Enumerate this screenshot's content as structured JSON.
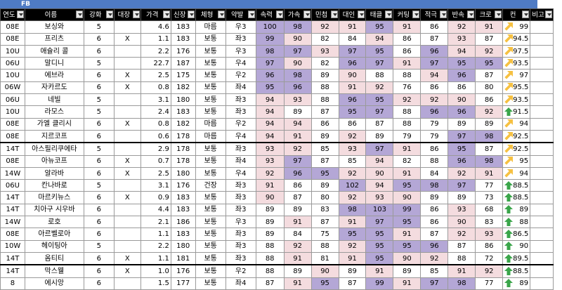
{
  "sheet_title": "FB",
  "columns": [
    "연도",
    "이름",
    "강화",
    "대장",
    "가격",
    "신장",
    "체형",
    "약발",
    "속력",
    "가속",
    "민첩",
    "대인",
    "태클",
    "커팅",
    "적극",
    "반속",
    "크로",
    "컨",
    "비고"
  ],
  "rows": [
    {
      "year": "08E",
      "name": "보싱와",
      "enh": "5",
      "cap": "",
      "price": "4.6",
      "height": "183",
      "body": "마름",
      "foot": "우3",
      "s": [
        "100",
        "98",
        "92",
        "91",
        "95",
        "91",
        "86",
        "92",
        "91"
      ],
      "trend": "up-diag",
      "con": "99",
      "note": ""
    },
    {
      "year": "08E",
      "name": "프리츠",
      "enh": "6",
      "cap": "X",
      "price": "1.1",
      "height": "183",
      "body": "보통",
      "foot": "좌3",
      "s": [
        "99",
        "90",
        "82",
        "84",
        "94",
        "86",
        "87",
        "93",
        "87"
      ],
      "trend": "up-diag",
      "con": "94.5",
      "note": ""
    },
    {
      "year": "10U",
      "name": "애슐리 콜",
      "enh": "6",
      "cap": "",
      "price": "2.2",
      "height": "176",
      "body": "보통",
      "foot": "우3",
      "s": [
        "98",
        "97",
        "93",
        "97",
        "95",
        "86",
        "96",
        "94",
        "92"
      ],
      "trend": "up-diag",
      "con": "97.5",
      "note": ""
    },
    {
      "year": "06U",
      "name": "말디니",
      "enh": "5",
      "cap": "",
      "price": "22.7",
      "height": "187",
      "body": "보통",
      "foot": "우4",
      "s": [
        "97",
        "90",
        "82",
        "96",
        "97",
        "91",
        "97",
        "95",
        "95"
      ],
      "trend": "up-diag",
      "con": "93.5",
      "note": ""
    },
    {
      "year": "10U",
      "name": "에브라",
      "enh": "6",
      "cap": "X",
      "price": "2.5",
      "height": "175",
      "body": "보통",
      "foot": "우2",
      "s": [
        "96",
        "98",
        "89",
        "90",
        "88",
        "88",
        "94",
        "96",
        "87"
      ],
      "trend": "up-diag",
      "con": "97",
      "note": ""
    },
    {
      "year": "06W",
      "name": "자카르도",
      "enh": "6",
      "cap": "X",
      "price": "0.8",
      "height": "182",
      "body": "보통",
      "foot": "좌4",
      "s": [
        "95",
        "96",
        "88",
        "91",
        "92",
        "76",
        "86",
        "86",
        "80"
      ],
      "trend": "up-diag",
      "con": "95.5",
      "note": ""
    },
    {
      "year": "06U",
      "name": "네빌",
      "enh": "5",
      "cap": "",
      "price": "3.1",
      "height": "180",
      "body": "보통",
      "foot": "좌3",
      "s": [
        "94",
        "93",
        "88",
        "96",
        "95",
        "92",
        "92",
        "90",
        "86"
      ],
      "trend": "up-diag",
      "con": "93.5",
      "note": ""
    },
    {
      "year": "10U",
      "name": "라모스",
      "enh": "5",
      "cap": "",
      "price": "2.4",
      "height": "183",
      "body": "보통",
      "foot": "좌3",
      "s": [
        "94",
        "89",
        "87",
        "95",
        "97",
        "88",
        "96",
        "96",
        "92"
      ],
      "trend": "up",
      "con": "91.5",
      "note": ""
    },
    {
      "year": "08E",
      "name": "가엘 클리시",
      "enh": "6",
      "cap": "X",
      "price": "0.8",
      "height": "182",
      "body": "마름",
      "foot": "우2",
      "s": [
        "94",
        "94",
        "86",
        "86",
        "87",
        "88",
        "79",
        "89",
        "89"
      ],
      "trend": "up-diag",
      "con": "94",
      "note": ""
    },
    {
      "year": "08E",
      "name": "지르코프",
      "enh": "6",
      "cap": "",
      "price": "0.6",
      "height": "178",
      "body": "마름",
      "foot": "우4",
      "s": [
        "94",
        "91",
        "89",
        "92",
        "89",
        "79",
        "79",
        "97",
        "98"
      ],
      "trend": "up-diag",
      "con": "92.5",
      "note": ""
    },
    {
      "year": "14T",
      "name": "아스필리쿠에타",
      "enh": "5",
      "cap": "",
      "price": "2.9",
      "height": "178",
      "body": "보통",
      "foot": "좌3",
      "s": [
        "93",
        "92",
        "85",
        "93",
        "97",
        "91",
        "86",
        "95",
        "87"
      ],
      "trend": "up-diag",
      "con": "92.5",
      "note": ""
    },
    {
      "year": "08E",
      "name": "아뉴코프",
      "enh": "6",
      "cap": "X",
      "price": "0.7",
      "height": "178",
      "body": "보통",
      "foot": "좌4",
      "s": [
        "93",
        "97",
        "87",
        "85",
        "94",
        "82",
        "88",
        "96",
        "98"
      ],
      "trend": "up-diag",
      "con": "95",
      "note": ""
    },
    {
      "year": "14W",
      "name": "알라바",
      "enh": "6",
      "cap": "X",
      "price": "2.5",
      "height": "180",
      "body": "보통",
      "foot": "우4",
      "s": [
        "92",
        "96",
        "95",
        "92",
        "90",
        "91",
        "84",
        "92",
        "91"
      ],
      "trend": "up-diag",
      "con": "94",
      "note": ""
    },
    {
      "year": "06U",
      "name": "칸나바로",
      "enh": "5",
      "cap": "",
      "price": "3.1",
      "height": "176",
      "body": "건장",
      "foot": "좌3",
      "s": [
        "91",
        "86",
        "89",
        "102",
        "94",
        "95",
        "98",
        "97",
        "77"
      ],
      "trend": "up",
      "con": "88.5",
      "note": ""
    },
    {
      "year": "14T",
      "name": "마르키뉴스",
      "enh": "6",
      "cap": "X",
      "price": "0.9",
      "height": "183",
      "body": "보통",
      "foot": "좌3",
      "s": [
        "90",
        "87",
        "80",
        "92",
        "93",
        "90",
        "89",
        "89",
        "73"
      ],
      "trend": "up",
      "con": "88.5",
      "note": ""
    },
    {
      "year": "14T",
      "name": "치아구 시우바",
      "enh": "6",
      "cap": "",
      "price": "4.4",
      "height": "183",
      "body": "보통",
      "foot": "좌3",
      "s": [
        "89",
        "89",
        "83",
        "98",
        "103",
        "99",
        "86",
        "93",
        "68"
      ],
      "trend": "up",
      "con": "89",
      "note": ""
    },
    {
      "year": "14W",
      "name": "로호",
      "enh": "6",
      "cap": "",
      "price": "2.1",
      "height": "186",
      "body": "보통",
      "foot": "우3",
      "s": [
        "89",
        "91",
        "87",
        "91",
        "97",
        "95",
        "86",
        "90",
        "83"
      ],
      "trend": "up",
      "con": "88",
      "note": ""
    },
    {
      "year": "08E",
      "name": "아르벨로아",
      "enh": "6",
      "cap": "",
      "price": "1.1",
      "height": "183",
      "body": "보통",
      "foot": "좌3",
      "s": [
        "89",
        "84",
        "75",
        "95",
        "95",
        "91",
        "87",
        "92",
        "93"
      ],
      "trend": "up",
      "con": "86.5",
      "note": ""
    },
    {
      "year": "10W",
      "name": "헤이팅아",
      "enh": "5",
      "cap": "",
      "price": "2.2",
      "height": "180",
      "body": "보통",
      "foot": "좌3",
      "s": [
        "88",
        "92",
        "88",
        "92",
        "95",
        "95",
        "96",
        "87",
        "86"
      ],
      "trend": "up",
      "con": "90",
      "note": ""
    },
    {
      "year": "14T",
      "name": "옴티티",
      "enh": "6",
      "cap": "X",
      "price": "1.1",
      "height": "181",
      "body": "보통",
      "foot": "좌3",
      "s": [
        "88",
        "91",
        "81",
        "91",
        "95",
        "90",
        "92",
        "88",
        "72"
      ],
      "trend": "up",
      "con": "89.5",
      "note": ""
    },
    {
      "year": "14T",
      "name": "막스웰",
      "enh": "6",
      "cap": "X",
      "price": "1.0",
      "height": "176",
      "body": "보통",
      "foot": "우2",
      "s": [
        "88",
        "89",
        "90",
        "89",
        "91",
        "89",
        "85",
        "91",
        "92"
      ],
      "trend": "up",
      "con": "88.5",
      "note": ""
    },
    {
      "year": "8",
      "name": "에시앙",
      "enh": "6",
      "cap": "",
      "price": "1.5",
      "height": "177",
      "body": "보통",
      "foot": "좌4",
      "s": [
        "87",
        "91",
        "95",
        "87",
        "99",
        "91",
        "97",
        "98",
        "77"
      ],
      "trend": "up",
      "con": "89",
      "note": ""
    }
  ],
  "colors": {
    "high": "#b4a7d6",
    "mid": "#f4dcdf",
    "header_bg": "#000000",
    "title_bg": "#4f7bc4",
    "arrow_diag": "#f6c142",
    "arrow_up": "#3aa54a"
  }
}
